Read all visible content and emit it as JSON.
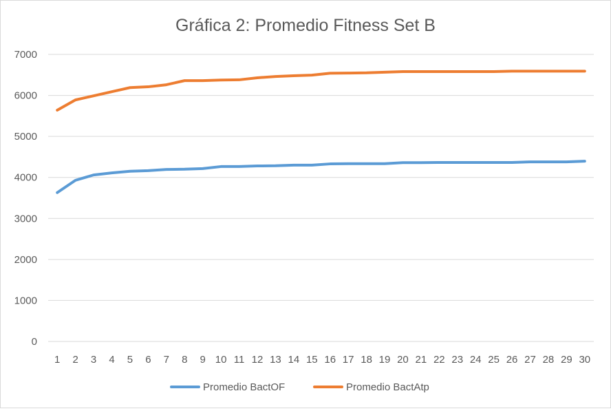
{
  "chart_data": {
    "type": "line",
    "title": "Gráfica 2: Promedio Fitness Set B",
    "xlabel": "",
    "ylabel": "",
    "ylim": [
      0,
      7000
    ],
    "yticks": [
      "0",
      "1000",
      "2000",
      "3000",
      "4000",
      "5000",
      "6000",
      "7000"
    ],
    "x": [
      "1",
      "2",
      "3",
      "4",
      "5",
      "6",
      "7",
      "8",
      "9",
      "10",
      "11",
      "12",
      "13",
      "14",
      "15",
      "16",
      "17",
      "18",
      "19",
      "20",
      "21",
      "22",
      "23",
      "24",
      "25",
      "26",
      "27",
      "28",
      "29",
      "30"
    ],
    "grid": true,
    "legend_position": "bottom",
    "series": [
      {
        "name": "Promedio BactOF",
        "color": "#5b9bd5",
        "values": [
          3630,
          3930,
          4060,
          4110,
          4150,
          4165,
          4195,
          4200,
          4215,
          4265,
          4265,
          4280,
          4285,
          4300,
          4300,
          4330,
          4335,
          4335,
          4335,
          4360,
          4360,
          4365,
          4365,
          4365,
          4365,
          4365,
          4380,
          4380,
          4380,
          4395
        ]
      },
      {
        "name": "Promedio BactAtp",
        "color": "#ed7d31",
        "values": [
          5640,
          5890,
          5990,
          6090,
          6190,
          6210,
          6260,
          6360,
          6360,
          6375,
          6380,
          6430,
          6460,
          6480,
          6495,
          6540,
          6545,
          6550,
          6565,
          6580,
          6580,
          6580,
          6580,
          6580,
          6580,
          6590,
          6590,
          6590,
          6590,
          6590
        ]
      }
    ]
  }
}
